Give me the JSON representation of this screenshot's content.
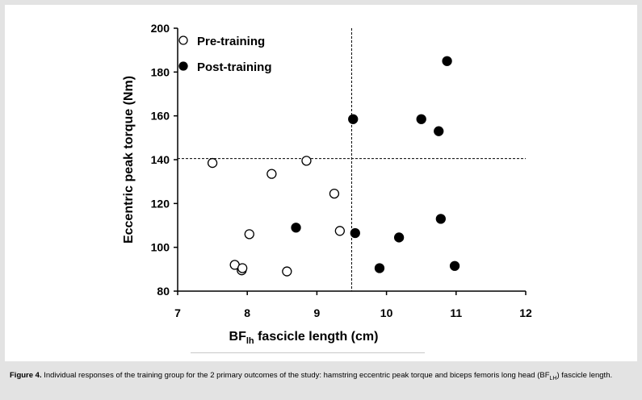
{
  "chart_data": {
    "type": "scatter",
    "title": "",
    "xlabel": {
      "main": "BF",
      "sub": "lh",
      "rest": " fascicle length (cm)"
    },
    "ylabel": "Eccentric peak torque (Nm)",
    "xlim": [
      7,
      12
    ],
    "ylim": [
      80,
      200
    ],
    "x_ticks": [
      "7",
      "8",
      "9",
      "10",
      "11",
      "12"
    ],
    "y_ticks": [
      "80",
      "100",
      "120",
      "140",
      "160",
      "180",
      "200"
    ],
    "reference_lines": {
      "vertical_x": 9.5,
      "horizontal_y": 140.5
    },
    "legend_position": "top-left",
    "grid": false,
    "series": [
      {
        "name": "Pre-training",
        "marker": "open-circle",
        "color": "#000000",
        "points": [
          {
            "x": 7.5,
            "y": 138.5
          },
          {
            "x": 7.82,
            "y": 92
          },
          {
            "x": 7.92,
            "y": 89.5
          },
          {
            "x": 7.93,
            "y": 90.5
          },
          {
            "x": 8.03,
            "y": 106
          },
          {
            "x": 8.35,
            "y": 133.5
          },
          {
            "x": 8.57,
            "y": 89
          },
          {
            "x": 8.85,
            "y": 139.5
          },
          {
            "x": 9.25,
            "y": 124.5
          },
          {
            "x": 9.33,
            "y": 107.5
          }
        ]
      },
      {
        "name": "Post-training",
        "marker": "filled-circle",
        "color": "#000000",
        "points": [
          {
            "x": 8.7,
            "y": 109
          },
          {
            "x": 9.52,
            "y": 158.5
          },
          {
            "x": 9.55,
            "y": 106.5
          },
          {
            "x": 9.9,
            "y": 90.5
          },
          {
            "x": 10.18,
            "y": 104.5
          },
          {
            "x": 10.5,
            "y": 158.5
          },
          {
            "x": 10.75,
            "y": 153
          },
          {
            "x": 10.78,
            "y": 113
          },
          {
            "x": 10.87,
            "y": 185
          },
          {
            "x": 10.98,
            "y": 91.5
          }
        ]
      }
    ]
  },
  "caption": {
    "label": "Figure 4.",
    "text_before": " Individual responses of the training group for the 2 primary outcomes of the study: hamstring eccentric peak torque and biceps femoris long head (BF",
    "sub": "LH",
    "text_after": ") fascicle length."
  }
}
